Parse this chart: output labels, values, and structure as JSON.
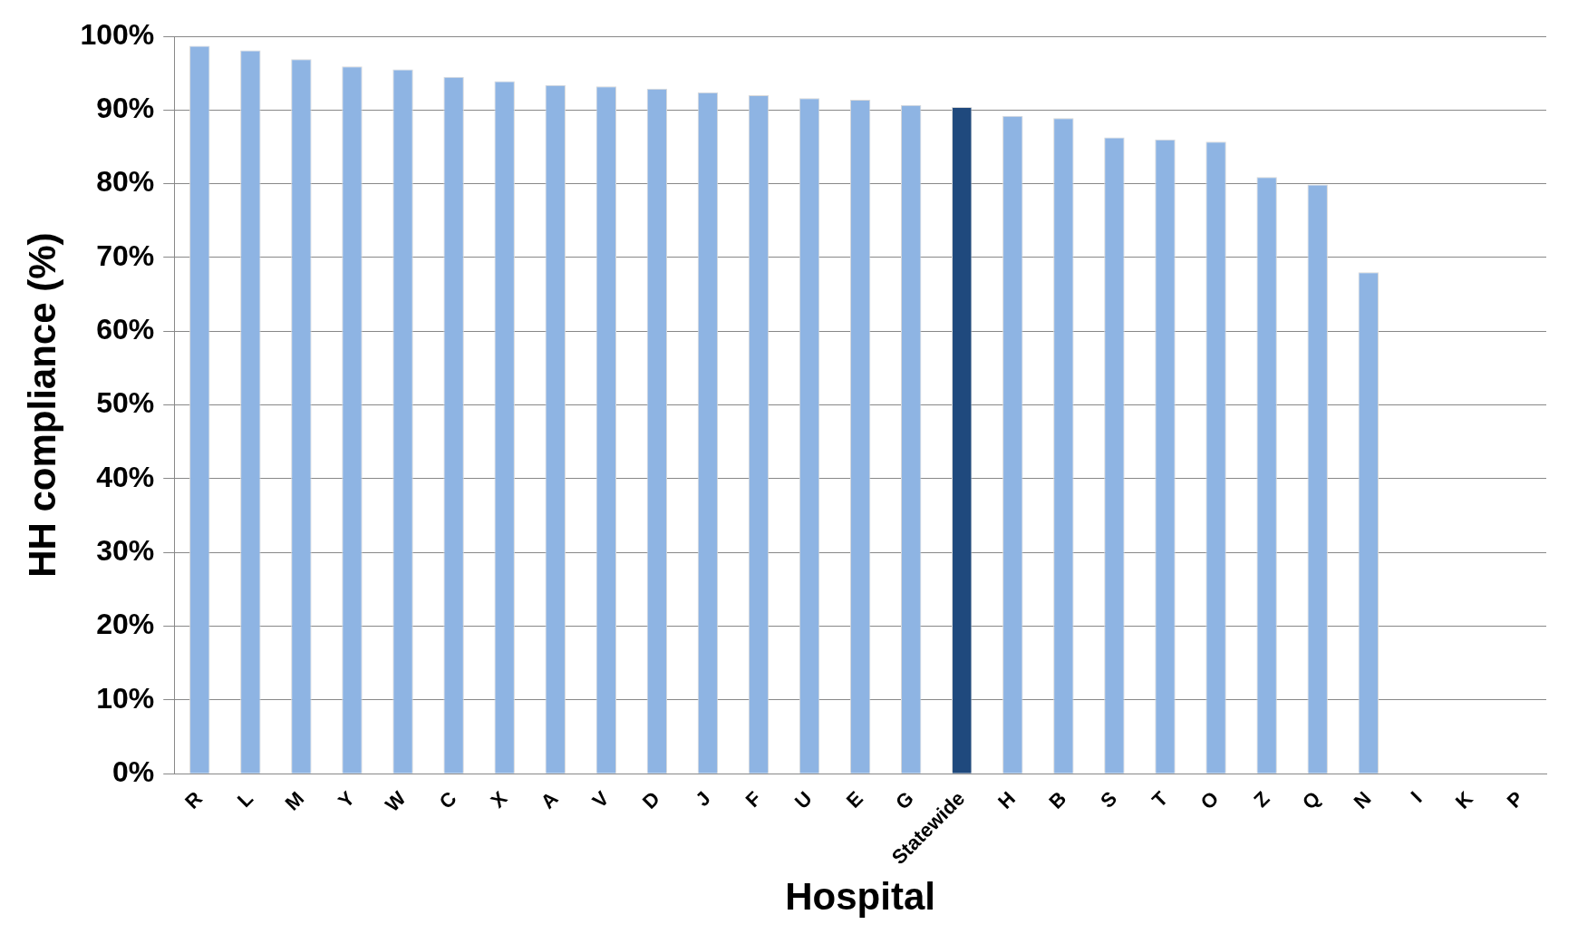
{
  "chart_data": {
    "type": "bar",
    "xlabel": "Hospital",
    "ylabel": "HH compliance (%)",
    "categories": [
      "R",
      "L",
      "M",
      "Y",
      "W",
      "C",
      "X",
      "A",
      "V",
      "D",
      "J",
      "F",
      "U",
      "E",
      "G",
      "Statewide",
      "H",
      "B",
      "S",
      "T",
      "O",
      "Z",
      "Q",
      "N",
      "I",
      "K",
      "P"
    ],
    "values": [
      98.7,
      98.1,
      96.9,
      95.9,
      95.5,
      94.5,
      93.9,
      93.4,
      93.2,
      92.9,
      92.4,
      92.0,
      91.6,
      91.4,
      90.7,
      90.4,
      89.2,
      88.9,
      86.3,
      86.0,
      85.7,
      80.9,
      79.9,
      68.0,
      null,
      null,
      null
    ],
    "colors": [
      "#8eb4e3",
      "#8eb4e3",
      "#8eb4e3",
      "#8eb4e3",
      "#8eb4e3",
      "#8eb4e3",
      "#8eb4e3",
      "#8eb4e3",
      "#8eb4e3",
      "#8eb4e3",
      "#8eb4e3",
      "#8eb4e3",
      "#8eb4e3",
      "#8eb4e3",
      "#8eb4e3",
      "#1f497d",
      "#8eb4e3",
      "#8eb4e3",
      "#8eb4e3",
      "#8eb4e3",
      "#8eb4e3",
      "#8eb4e3",
      "#8eb4e3",
      "#8eb4e3",
      "#8eb4e3",
      "#8eb4e3",
      "#8eb4e3"
    ],
    "ylim": [
      0,
      100
    ],
    "yticks": [
      {
        "value": 0,
        "label": "0%"
      },
      {
        "value": 10,
        "label": "10%"
      },
      {
        "value": 20,
        "label": "20%"
      },
      {
        "value": 30,
        "label": "30%"
      },
      {
        "value": 40,
        "label": "40%"
      },
      {
        "value": 50,
        "label": "50%"
      },
      {
        "value": 60,
        "label": "60%"
      },
      {
        "value": 70,
        "label": "70%"
      },
      {
        "value": 80,
        "label": "80%"
      },
      {
        "value": 90,
        "label": "90%"
      },
      {
        "value": 100,
        "label": "100%"
      }
    ],
    "grid": "y",
    "legend": false
  }
}
